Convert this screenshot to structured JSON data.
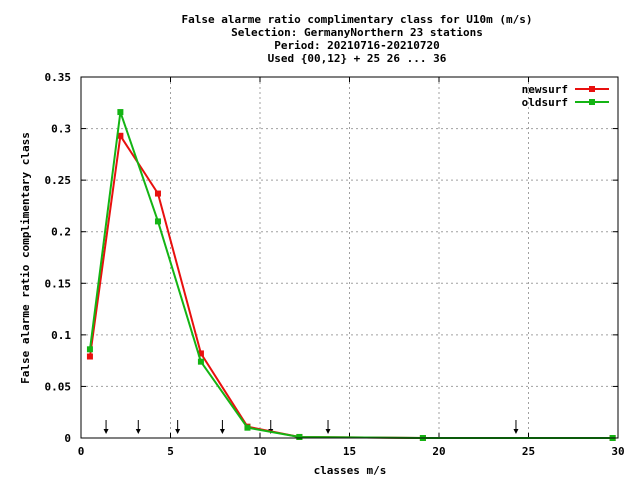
{
  "chart_data": {
    "type": "line",
    "title_lines": [
      "False alarme ratio complimentary class  for U10m (m/s)",
      "Selection: GermanyNorthern     23 stations",
      "Period: 20210716-20210720",
      "Used {00,12} + 25 26 ... 36"
    ],
    "xlabel": "classes m/s",
    "ylabel": "False alarme ratio complimentary class",
    "xlim": [
      0,
      30
    ],
    "ylim": [
      0,
      0.35
    ],
    "xticks": [
      0,
      5,
      10,
      15,
      20,
      25,
      30
    ],
    "yticks": [
      0,
      0.05,
      0.1,
      0.15,
      0.2,
      0.25,
      0.3,
      0.35
    ],
    "ytick_labels": [
      "0",
      "0.05",
      "0.1",
      "0.15",
      "0.2",
      "0.25",
      "0.3",
      "0.35"
    ],
    "grid": true,
    "legend_position": "top-right",
    "series": [
      {
        "name": "newsurf",
        "color": "#e8100e",
        "x": [
          0.5,
          2.2,
          4.3,
          6.7,
          9.3,
          12.2,
          19.1,
          29.7
        ],
        "y": [
          0.079,
          0.293,
          0.237,
          0.082,
          0.011,
          0.001,
          0.0,
          0.0
        ]
      },
      {
        "name": "oldsurf",
        "color": "#14b414",
        "x": [
          0.5,
          2.2,
          4.3,
          6.7,
          9.3,
          12.2,
          19.1,
          29.7
        ],
        "y": [
          0.086,
          0.316,
          0.21,
          0.074,
          0.01,
          0.001,
          0.0,
          0.0
        ]
      }
    ],
    "arrow_markers_x": [
      1.4,
      3.2,
      5.4,
      7.9,
      10.6,
      13.8,
      24.3
    ]
  }
}
